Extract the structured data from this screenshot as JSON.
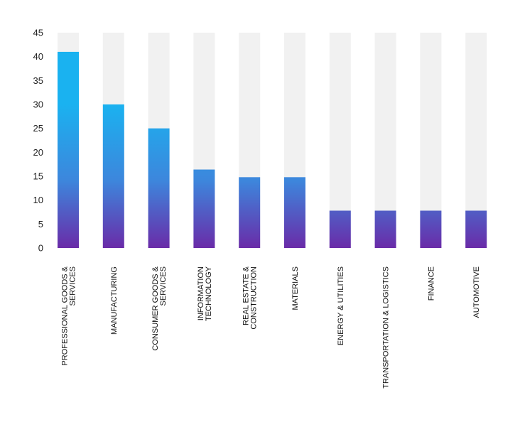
{
  "chart_data": {
    "type": "bar",
    "categories": [
      [
        "PROFESSIONAL GOODS &",
        "SERVICES"
      ],
      [
        "MANUFACTURING"
      ],
      [
        "CONSUMER GOODS &",
        "SERVICES"
      ],
      [
        "INFORMATION",
        "TECHNOLOGY"
      ],
      [
        "REAL ESTATE &",
        "CONSTRUCTION"
      ],
      [
        "MATERIALS"
      ],
      [
        "ENERGY & UTILITIES"
      ],
      [
        "TRANSPORTATION & LOGISTICS"
      ],
      [
        "FINANCE"
      ],
      [
        "AUTOMOTIVE"
      ]
    ],
    "values": [
      41,
      30,
      25,
      16.4,
      14.8,
      14.8,
      7.8,
      7.8,
      7.8,
      7.8
    ],
    "ylim": [
      0,
      45
    ],
    "yticks": [
      0,
      5,
      10,
      15,
      20,
      25,
      30,
      35,
      40,
      45
    ],
    "background_bar_value": 45,
    "grid": false,
    "legend": "none",
    "colors": {
      "bar_top": "#1ab2f0",
      "bar_mid": "#3d86dc",
      "bar_bottom": "#6a2ba8",
      "track": "#f1f1f1",
      "text": "#222222"
    }
  }
}
